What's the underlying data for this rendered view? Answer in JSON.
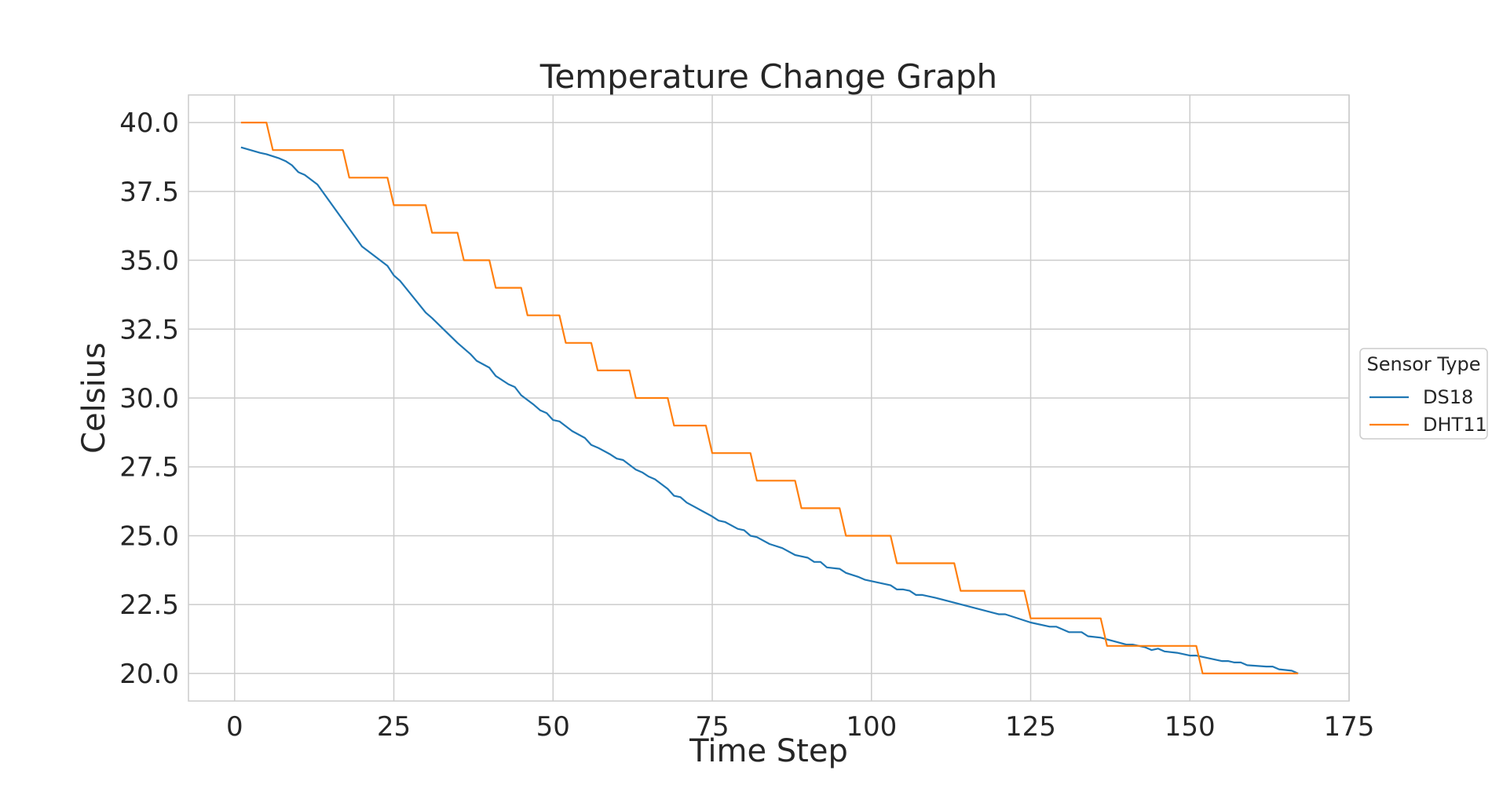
{
  "chart_data": {
    "type": "line",
    "title": "Temperature Change Graph",
    "xlabel": "Time Step",
    "ylabel": "Celsius",
    "xlim": [
      -7.25,
      175
    ],
    "ylim": [
      19.0,
      41.0
    ],
    "xticks": [
      0,
      25,
      50,
      75,
      100,
      125,
      150,
      175
    ],
    "yticks": [
      20.0,
      22.5,
      25.0,
      27.5,
      30.0,
      32.5,
      35.0,
      37.5,
      40.0
    ],
    "xtick_labels": [
      "0",
      "25",
      "50",
      "75",
      "100",
      "125",
      "150",
      "175"
    ],
    "ytick_labels": [
      "20.0",
      "22.5",
      "25.0",
      "27.5",
      "30.0",
      "32.5",
      "35.0",
      "37.5",
      "40.0"
    ],
    "grid": true,
    "legend": {
      "title": "Sensor Type",
      "placement": "center-right outside"
    },
    "series": [
      {
        "name": "DS18",
        "color": "#1f77b4",
        "points": [
          [
            1,
            39.1
          ],
          [
            4,
            38.9
          ],
          [
            5,
            38.85
          ],
          [
            7,
            38.7
          ],
          [
            8,
            38.6
          ],
          [
            9,
            38.45
          ],
          [
            10,
            38.2
          ],
          [
            11,
            38.1
          ],
          [
            13,
            37.75
          ],
          [
            20,
            35.5
          ],
          [
            24,
            34.8
          ],
          [
            25,
            34.45
          ],
          [
            26,
            34.25
          ],
          [
            30,
            33.1
          ],
          [
            31,
            32.9
          ],
          [
            35,
            32.0
          ],
          [
            37,
            31.6
          ],
          [
            38,
            31.35
          ],
          [
            40,
            31.1
          ],
          [
            41,
            30.8
          ],
          [
            43,
            30.5
          ],
          [
            44,
            30.4
          ],
          [
            45,
            30.1
          ],
          [
            47,
            29.75
          ],
          [
            48,
            29.55
          ],
          [
            49,
            29.45
          ],
          [
            50,
            29.2
          ],
          [
            51,
            29.15
          ],
          [
            53,
            28.8
          ],
          [
            55,
            28.55
          ],
          [
            56,
            28.3
          ],
          [
            57,
            28.2
          ],
          [
            59,
            27.95
          ],
          [
            60,
            27.8
          ],
          [
            61,
            27.75
          ],
          [
            63,
            27.4
          ],
          [
            64,
            27.3
          ],
          [
            65,
            27.15
          ],
          [
            66,
            27.05
          ],
          [
            68,
            26.7
          ],
          [
            69,
            26.45
          ],
          [
            70,
            26.4
          ],
          [
            71,
            26.2
          ],
          [
            73,
            25.95
          ],
          [
            75,
            25.7
          ],
          [
            76,
            25.55
          ],
          [
            77,
            25.5
          ],
          [
            79,
            25.25
          ],
          [
            80,
            25.2
          ],
          [
            81,
            25.0
          ],
          [
            82,
            24.95
          ],
          [
            84,
            24.7
          ],
          [
            86,
            24.55
          ],
          [
            88,
            24.3
          ],
          [
            90,
            24.2
          ],
          [
            91,
            24.05
          ],
          [
            92,
            24.05
          ],
          [
            93,
            23.85
          ],
          [
            95,
            23.8
          ],
          [
            96,
            23.65
          ],
          [
            98,
            23.5
          ],
          [
            99,
            23.4
          ],
          [
            101,
            23.3
          ],
          [
            103,
            23.2
          ],
          [
            104,
            23.05
          ],
          [
            105,
            23.05
          ],
          [
            106,
            23.0
          ],
          [
            107,
            22.85
          ],
          [
            108,
            22.85
          ],
          [
            110,
            22.75
          ],
          [
            115,
            22.45
          ],
          [
            120,
            22.15
          ],
          [
            121,
            22.15
          ],
          [
            125,
            21.85
          ],
          [
            128,
            21.7
          ],
          [
            129,
            21.7
          ],
          [
            131,
            21.5
          ],
          [
            133,
            21.5
          ],
          [
            134,
            21.35
          ],
          [
            136,
            21.3
          ],
          [
            140,
            21.05
          ],
          [
            141,
            21.05
          ],
          [
            143,
            20.95
          ],
          [
            144,
            20.85
          ],
          [
            145,
            20.9
          ],
          [
            146,
            20.8
          ],
          [
            148,
            20.75
          ],
          [
            150,
            20.65
          ],
          [
            151,
            20.65
          ],
          [
            155,
            20.45
          ],
          [
            156,
            20.45
          ],
          [
            157,
            20.4
          ],
          [
            158,
            20.4
          ],
          [
            159,
            20.3
          ],
          [
            162,
            20.25
          ],
          [
            163,
            20.25
          ],
          [
            164,
            20.15
          ],
          [
            166,
            20.1
          ],
          [
            167,
            20.0
          ]
        ]
      },
      {
        "name": "DHT11",
        "color": "#ff7f0e",
        "points": [
          [
            1,
            40
          ],
          [
            5,
            40
          ],
          [
            6,
            39
          ],
          [
            17,
            39
          ],
          [
            18,
            38
          ],
          [
            24,
            38
          ],
          [
            25,
            37
          ],
          [
            30,
            37
          ],
          [
            31,
            36
          ],
          [
            35,
            36
          ],
          [
            36,
            35
          ],
          [
            40,
            35
          ],
          [
            41,
            34
          ],
          [
            45,
            34
          ],
          [
            46,
            33
          ],
          [
            51,
            33
          ],
          [
            52,
            32
          ],
          [
            56,
            32
          ],
          [
            57,
            31
          ],
          [
            62,
            31
          ],
          [
            63,
            30
          ],
          [
            68,
            30
          ],
          [
            69,
            29
          ],
          [
            74,
            29
          ],
          [
            75,
            28
          ],
          [
            81,
            28
          ],
          [
            82,
            27
          ],
          [
            88,
            27
          ],
          [
            89,
            26
          ],
          [
            95,
            26
          ],
          [
            96,
            25
          ],
          [
            103,
            25
          ],
          [
            104,
            24
          ],
          [
            113,
            24
          ],
          [
            114,
            23
          ],
          [
            124,
            23
          ],
          [
            125,
            22
          ],
          [
            136,
            22
          ],
          [
            137,
            21
          ],
          [
            151,
            21
          ],
          [
            152,
            20
          ],
          [
            167,
            20
          ]
        ]
      }
    ]
  }
}
